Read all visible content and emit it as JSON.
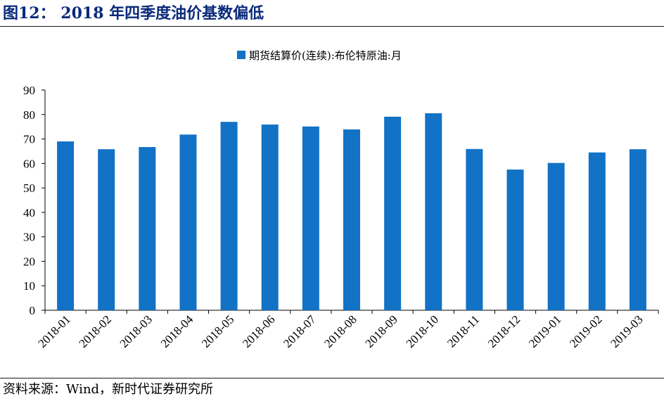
{
  "figure": {
    "title": "图12： 2018 年四季度油价基数偏低",
    "source": "资料来源：Wind，新时代证券研究所"
  },
  "colors": {
    "bar": "#1272c6",
    "title": "#0a2a7a",
    "axis": "#000000"
  },
  "chart_data": {
    "type": "bar",
    "legend_position": "top-center",
    "grid": false,
    "categories": [
      "2018-01",
      "2018-02",
      "2018-03",
      "2018-04",
      "2018-05",
      "2018-06",
      "2018-07",
      "2018-08",
      "2018-09",
      "2018-10",
      "2018-11",
      "2018-12",
      "2019-01",
      "2019-02",
      "2019-03"
    ],
    "series": [
      {
        "name": "期货结算价(连续):布伦特原油:月",
        "values": [
          69.0,
          65.8,
          66.7,
          71.8,
          77.0,
          75.9,
          75.1,
          73.9,
          79.1,
          80.5,
          65.9,
          57.5,
          60.2,
          64.5,
          65.8
        ]
      }
    ],
    "ylim": [
      0,
      90
    ],
    "yticks": [
      0,
      10,
      20,
      30,
      40,
      50,
      60,
      70,
      80,
      90
    ],
    "xlabel": "",
    "ylabel": ""
  }
}
